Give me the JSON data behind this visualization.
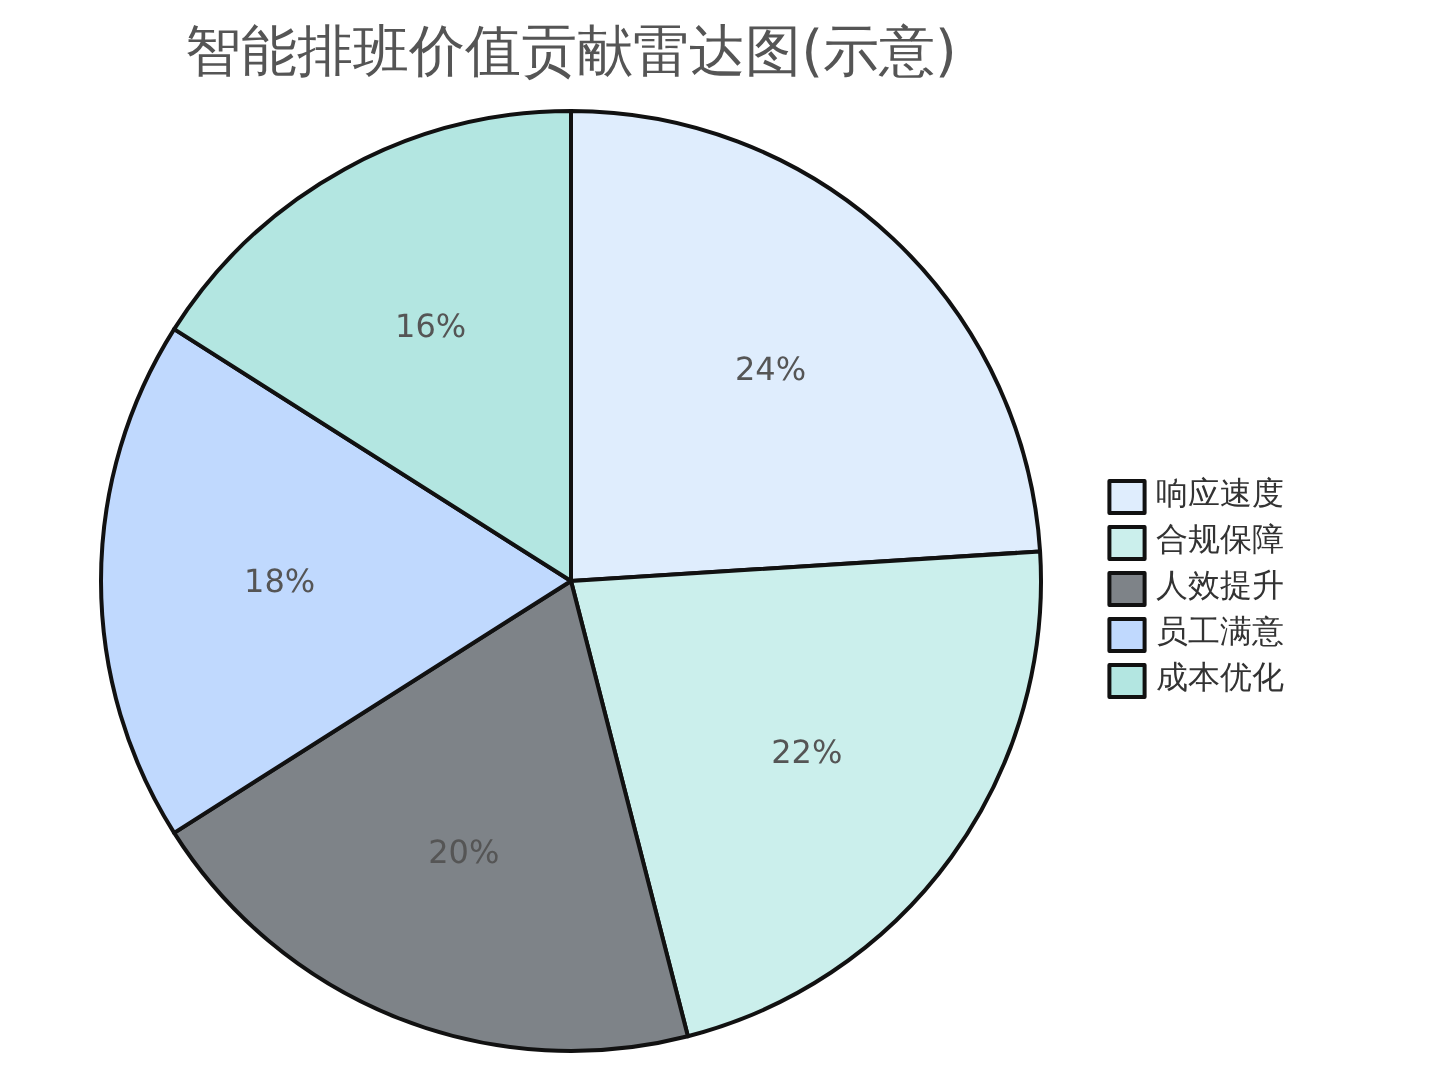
{
  "chart_data": {
    "type": "pie",
    "title": "智能排班价值贡献雷达图(示意)",
    "categories": [
      "响应速度",
      "合规保障",
      "人效提升",
      "员工满意",
      "成本优化"
    ],
    "values": [
      24,
      22,
      20,
      18,
      16
    ],
    "value_labels": [
      "24%",
      "22%",
      "20%",
      "18%",
      "16%"
    ],
    "colors": [
      "#dfedfd",
      "#cbefec",
      "#7e8388",
      "#c0d9fe",
      "#b3e6e1"
    ],
    "legend": "right"
  }
}
